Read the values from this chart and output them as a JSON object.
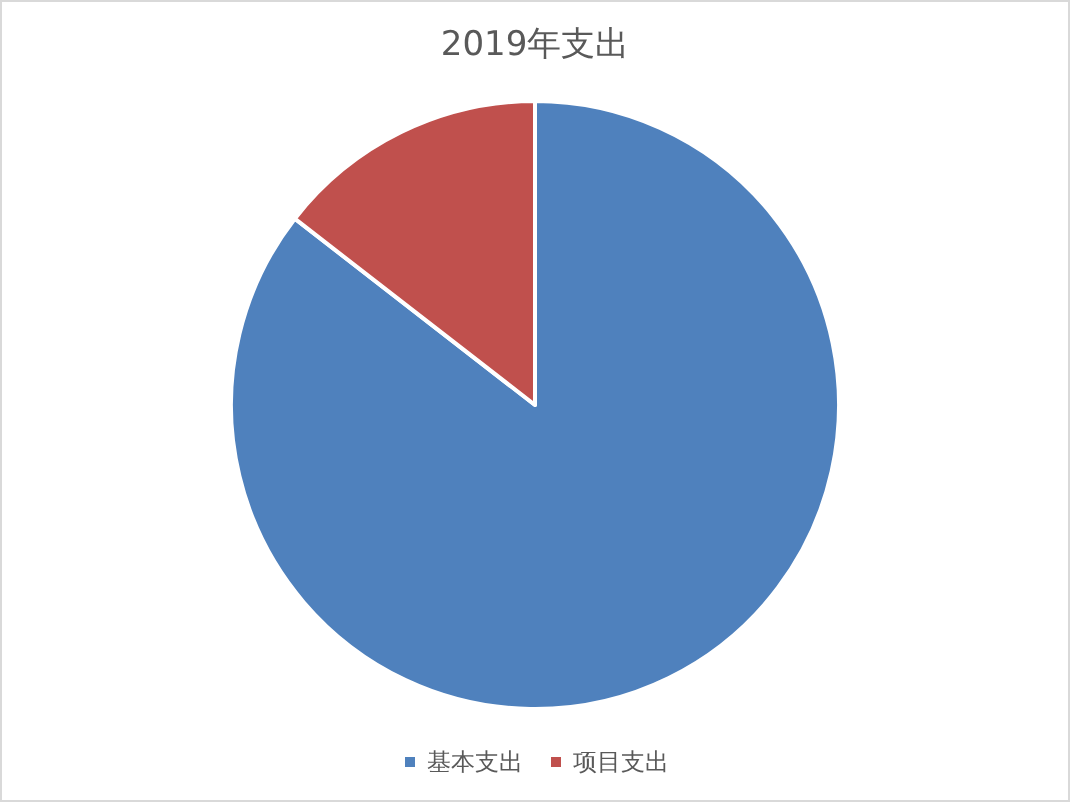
{
  "chart_data": {
    "type": "pie",
    "title": "2019年支出",
    "categories": [
      "基本支出",
      "项目支出"
    ],
    "values": [
      85.5,
      14.5
    ],
    "colors": [
      "#4f81bd",
      "#c0504d"
    ],
    "legend": "bottom"
  }
}
